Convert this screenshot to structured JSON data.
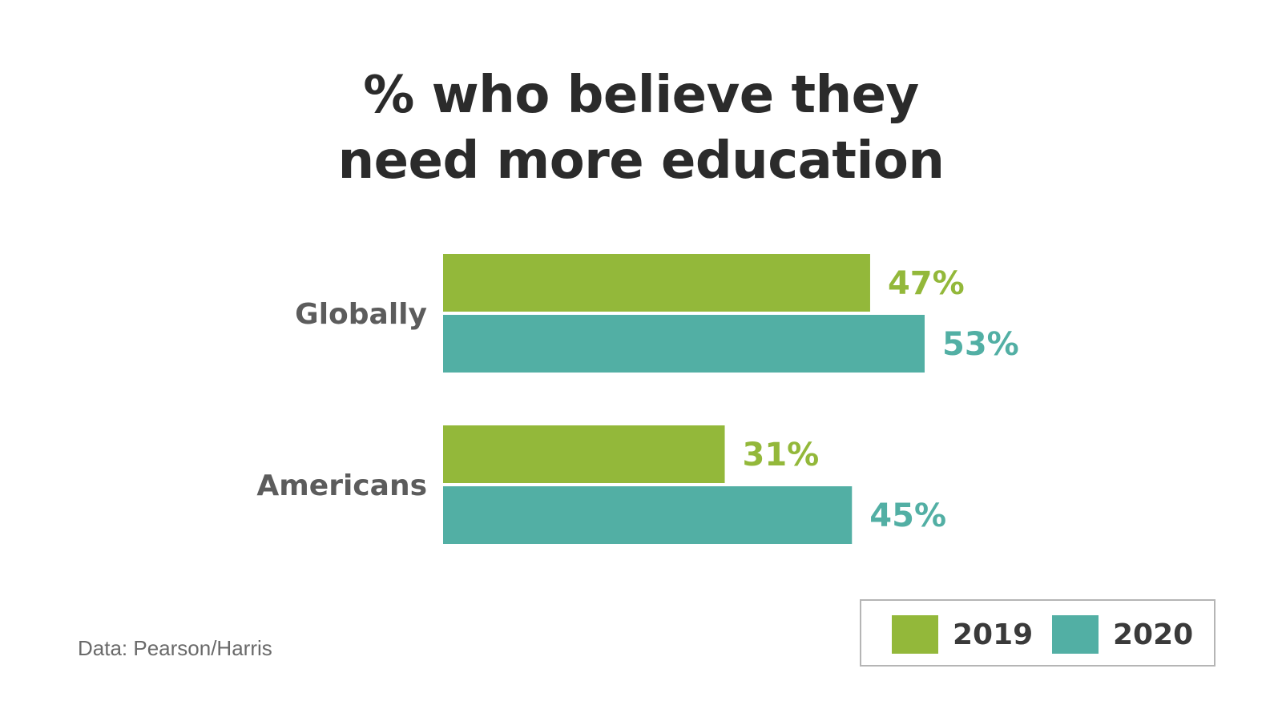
{
  "chart_data": {
    "type": "bar",
    "orientation": "horizontal",
    "title": "% who believe they need more education",
    "title_lines": [
      "% who believe they",
      "need more education"
    ],
    "categories": [
      "Globally",
      "Americans"
    ],
    "series": [
      {
        "name": "2019",
        "values": [
          47,
          31
        ],
        "labels": [
          "47%",
          "31%"
        ],
        "color": "#93b83a"
      },
      {
        "name": "2020",
        "values": [
          53,
          45
        ],
        "labels": [
          "53%",
          "45%"
        ],
        "color": "#52afa4"
      }
    ],
    "xlim": [
      0,
      53
    ],
    "grid": false,
    "legend_position": "bottom-right",
    "source": "Data: Pearson/Harris"
  }
}
